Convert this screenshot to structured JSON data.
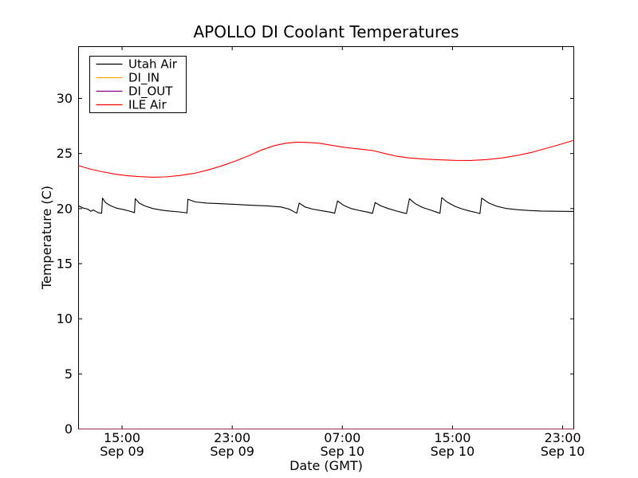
{
  "figure": {
    "title": "APOLLO DI Coolant Temperatures",
    "xlabel": "Date (GMT)",
    "ylabel": "Temperature (C)"
  },
  "chart_data": {
    "type": "line",
    "title": "APOLLO DI Coolant Temperatures",
    "xlabel": "Date (GMT)",
    "ylabel": "Temperature (C)",
    "grid": false,
    "legend_position": "upper left",
    "background_color": "#ffffff",
    "axis_color": "#000000",
    "ylim": [
      0,
      34.7
    ],
    "xlim_hours": [
      0,
      35.97
    ],
    "y_ticks": [
      0,
      5,
      10,
      15,
      20,
      25,
      30
    ],
    "x_ticks": [
      {
        "t": 3.16,
        "time": "15:00",
        "date": "Sep 09"
      },
      {
        "t": 11.16,
        "time": "23:00",
        "date": "Sep 09"
      },
      {
        "t": 19.16,
        "time": "07:00",
        "date": "Sep 10"
      },
      {
        "t": 27.16,
        "time": "15:00",
        "date": "Sep 10"
      },
      {
        "t": 35.16,
        "time": "23:00",
        "date": "Sep 10"
      }
    ],
    "series": [
      {
        "name": "Utah Air",
        "color": "#000000",
        "opacity": 1,
        "points": [
          [
            0,
            20.25
          ],
          [
            0.35,
            20.05
          ],
          [
            0.67,
            19.95
          ],
          [
            0.9,
            19.75
          ],
          [
            1.07,
            19.88
          ],
          [
            1.25,
            19.75
          ],
          [
            1.45,
            19.62
          ],
          [
            1.68,
            19.58
          ],
          [
            1.74,
            20.95
          ],
          [
            1.95,
            20.55
          ],
          [
            2.3,
            20.28
          ],
          [
            2.75,
            20.05
          ],
          [
            3.3,
            19.9
          ],
          [
            3.7,
            19.77
          ],
          [
            3.95,
            19.68
          ],
          [
            4.06,
            19.63
          ],
          [
            4.12,
            20.9
          ],
          [
            4.4,
            20.5
          ],
          [
            4.8,
            20.25
          ],
          [
            5.4,
            20.0
          ],
          [
            6.1,
            19.85
          ],
          [
            6.6,
            19.78
          ],
          [
            7.3,
            19.7
          ],
          [
            7.8,
            19.63
          ],
          [
            7.88,
            19.6
          ],
          [
            7.94,
            20.85
          ],
          [
            8.5,
            20.6
          ],
          [
            9.3,
            20.5
          ],
          [
            10.2,
            20.45
          ],
          [
            11.4,
            20.38
          ],
          [
            12.6,
            20.3
          ],
          [
            13.7,
            20.25
          ],
          [
            14.7,
            20.15
          ],
          [
            15.3,
            19.95
          ],
          [
            15.6,
            19.75
          ],
          [
            15.85,
            19.58
          ],
          [
            16.03,
            20.5
          ],
          [
            16.45,
            20.15
          ],
          [
            17.0,
            19.95
          ],
          [
            17.8,
            19.78
          ],
          [
            18.3,
            19.68
          ],
          [
            18.6,
            19.58
          ],
          [
            18.81,
            20.7
          ],
          [
            19.25,
            20.3
          ],
          [
            19.8,
            20.0
          ],
          [
            20.5,
            19.8
          ],
          [
            21.0,
            19.68
          ],
          [
            21.35,
            19.57
          ],
          [
            21.54,
            20.55
          ],
          [
            21.95,
            20.25
          ],
          [
            22.5,
            20.0
          ],
          [
            23.1,
            19.78
          ],
          [
            23.5,
            19.65
          ],
          [
            23.82,
            19.55
          ],
          [
            24.03,
            20.9
          ],
          [
            24.45,
            20.45
          ],
          [
            25.0,
            20.1
          ],
          [
            25.6,
            19.85
          ],
          [
            26.0,
            19.68
          ],
          [
            26.25,
            19.58
          ],
          [
            26.38,
            21.0
          ],
          [
            26.75,
            20.6
          ],
          [
            27.35,
            20.2
          ],
          [
            27.9,
            19.95
          ],
          [
            28.5,
            19.75
          ],
          [
            28.97,
            19.62
          ],
          [
            29.15,
            19.55
          ],
          [
            29.28,
            20.95
          ],
          [
            29.8,
            20.5
          ],
          [
            30.35,
            20.22
          ],
          [
            31.05,
            20.02
          ],
          [
            31.85,
            19.9
          ],
          [
            32.7,
            19.83
          ],
          [
            33.6,
            19.78
          ],
          [
            34.6,
            19.76
          ],
          [
            35.97,
            19.74
          ]
        ]
      },
      {
        "name": "DI_IN",
        "color": "#ffa500",
        "opacity": 0.9,
        "points": [
          [
            0,
            0
          ],
          [
            35.97,
            0
          ]
        ]
      },
      {
        "name": "DI_OUT",
        "color": "#800080",
        "opacity": 0.7,
        "points": [
          [
            0,
            0
          ],
          [
            35.97,
            0
          ]
        ]
      },
      {
        "name": "ILE Air",
        "color": "#ff0000",
        "opacity": 1,
        "points": [
          [
            0,
            23.9
          ],
          [
            0.8,
            23.6
          ],
          [
            1.7,
            23.35
          ],
          [
            2.7,
            23.12
          ],
          [
            3.55,
            22.98
          ],
          [
            4.45,
            22.9
          ],
          [
            5.4,
            22.85
          ],
          [
            6.35,
            22.88
          ],
          [
            7.35,
            23.0
          ],
          [
            8.4,
            23.2
          ],
          [
            9.35,
            23.48
          ],
          [
            10.4,
            23.88
          ],
          [
            11.4,
            24.32
          ],
          [
            12.4,
            24.82
          ],
          [
            13.3,
            25.32
          ],
          [
            14.25,
            25.72
          ],
          [
            15.05,
            25.93
          ],
          [
            15.85,
            26.03
          ],
          [
            16.7,
            26.0
          ],
          [
            17.5,
            25.93
          ],
          [
            18.35,
            25.75
          ],
          [
            19.35,
            25.55
          ],
          [
            20.4,
            25.4
          ],
          [
            21.35,
            25.27
          ],
          [
            22.25,
            25.0
          ],
          [
            23.1,
            24.75
          ],
          [
            24.0,
            24.6
          ],
          [
            25.0,
            24.5
          ],
          [
            26.15,
            24.43
          ],
          [
            27.35,
            24.38
          ],
          [
            28.5,
            24.37
          ],
          [
            29.65,
            24.45
          ],
          [
            30.8,
            24.6
          ],
          [
            31.95,
            24.85
          ],
          [
            33.0,
            25.13
          ],
          [
            34.0,
            25.48
          ],
          [
            34.85,
            25.78
          ],
          [
            35.55,
            26.03
          ],
          [
            35.97,
            26.2
          ]
        ]
      }
    ]
  }
}
